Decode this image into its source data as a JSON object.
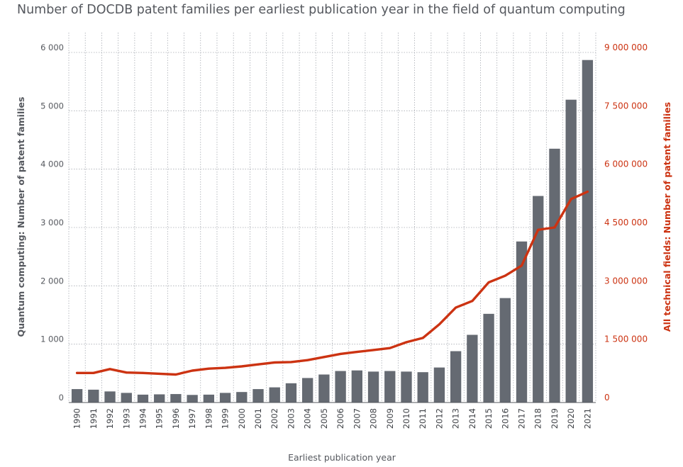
{
  "chart_data": {
    "type": "bar+line",
    "title": "Number of DOCDB patent families per earliest publication year in the field of quantum computing",
    "xlabel": "Earliest publication year",
    "ylabel_left": "Quantum computing: Number of patent families",
    "ylabel_right": "All technical fields: Number of patent families",
    "categories": [
      "1990",
      "1991",
      "1992",
      "1993",
      "1994",
      "1995",
      "1996",
      "1997",
      "1998",
      "1999",
      "2000",
      "2001",
      "2002",
      "2003",
      "2004",
      "2005",
      "2006",
      "2007",
      "2008",
      "2009",
      "2010",
      "2011",
      "2012",
      "2013",
      "2014",
      "2015",
      "2016",
      "2017",
      "2018",
      "2019",
      "2020",
      "2021"
    ],
    "ylim_left": [
      0,
      6000
    ],
    "yticks_left": [
      0,
      1000,
      2000,
      3000,
      4000,
      5000,
      6000
    ],
    "yticklabels_left": [
      "0",
      "1 000",
      "2 000",
      "3 000",
      "4 000",
      "5 000",
      "6 000"
    ],
    "ylim_right": [
      0,
      9000000
    ],
    "yticks_right": [
      0,
      1500000,
      3000000,
      4500000,
      6000000,
      7500000,
      9000000
    ],
    "yticklabels_right": [
      "0",
      "1 500 000",
      "3 000 000",
      "4 500 000",
      "6 000 000",
      "7 500 000",
      "9 000 000"
    ],
    "grid": true,
    "series": [
      {
        "name": "Quantum computing",
        "type": "bar",
        "axis": "left",
        "color": "#656a72",
        "values": [
          230,
          220,
          190,
          165,
          135,
          140,
          145,
          130,
          135,
          165,
          180,
          230,
          260,
          330,
          420,
          480,
          540,
          550,
          530,
          540,
          530,
          520,
          600,
          880,
          1160,
          1520,
          1790,
          2760,
          3540,
          4350,
          5190,
          5870
        ]
      },
      {
        "name": "All technical fields",
        "type": "line",
        "axis": "right",
        "color": "#cc3312",
        "values": [
          760000,
          760000,
          860000,
          770000,
          760000,
          740000,
          720000,
          820000,
          870000,
          890000,
          930000,
          980000,
          1030000,
          1040000,
          1090000,
          1170000,
          1250000,
          1300000,
          1350000,
          1400000,
          1550000,
          1660000,
          2010000,
          2440000,
          2610000,
          3090000,
          3260000,
          3520000,
          4440000,
          4500000,
          5230000,
          5420000
        ]
      }
    ]
  }
}
